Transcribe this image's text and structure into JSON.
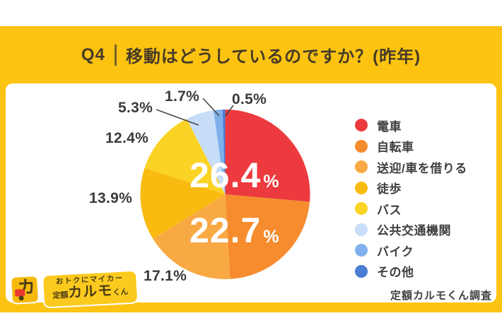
{
  "page": {
    "background": "#ffffff",
    "frame_color": "#FCC310"
  },
  "header": {
    "q_label": "Q4",
    "title": "移動はどうしているのですか？(昨年)",
    "text_color": "#463b28",
    "divider_color": "#5d5134"
  },
  "chart_data": {
    "type": "pie",
    "title": "Q4 移動はどうしているのですか？(昨年)",
    "categories": [
      "電車",
      "自転車",
      "送迎/車を借りる",
      "徒歩",
      "バス",
      "公共交通機関",
      "バイク",
      "その他"
    ],
    "values": [
      26.4,
      22.7,
      17.1,
      13.9,
      12.4,
      5.3,
      1.7,
      0.5
    ],
    "value_labels": [
      "26.4%",
      "22.7%",
      "17.1%",
      "13.9%",
      "12.4%",
      "5.3%",
      "1.7%",
      "0.5%"
    ],
    "unit": "%",
    "colors": [
      "#ED3A3E",
      "#F68C2E",
      "#F9A943",
      "#F9BB10",
      "#FBD325",
      "#C7DDF8",
      "#7FB0EB",
      "#4A7DD4"
    ],
    "start_angle_deg": 0,
    "direction": "clockwise",
    "legend_position": "right",
    "inside_label_color": "#FFFFFF",
    "outside_label_color": "#3B3B3B",
    "leader_line_color": "#4A4A4A"
  },
  "legend": {
    "items": [
      {
        "label": "電車",
        "color": "#ED3A3E"
      },
      {
        "label": "自転車",
        "color": "#F68C2E"
      },
      {
        "label": "送迎/車を借りる",
        "color": "#F9A943"
      },
      {
        "label": "徒歩",
        "color": "#F9BB10"
      },
      {
        "label": "バス",
        "color": "#FBD325"
      },
      {
        "label": "公共交通機関",
        "color": "#C7DDF8"
      },
      {
        "label": "バイク",
        "color": "#7FB0EB"
      },
      {
        "label": "その他",
        "color": "#4A7DD4"
      }
    ]
  },
  "footer": {
    "credit": "定額カルモくん調査"
  },
  "logo": {
    "icon_char": "カ",
    "tagline": "おトクにマイカー",
    "brand_prefix": "定額",
    "brand": "カルモ",
    "brand_suffix": "くん",
    "icon_bg": "#F6B90D",
    "pill_bg": "#FCCA1E",
    "truck_color": "#E8382F",
    "text_color": "#4A3B14"
  }
}
